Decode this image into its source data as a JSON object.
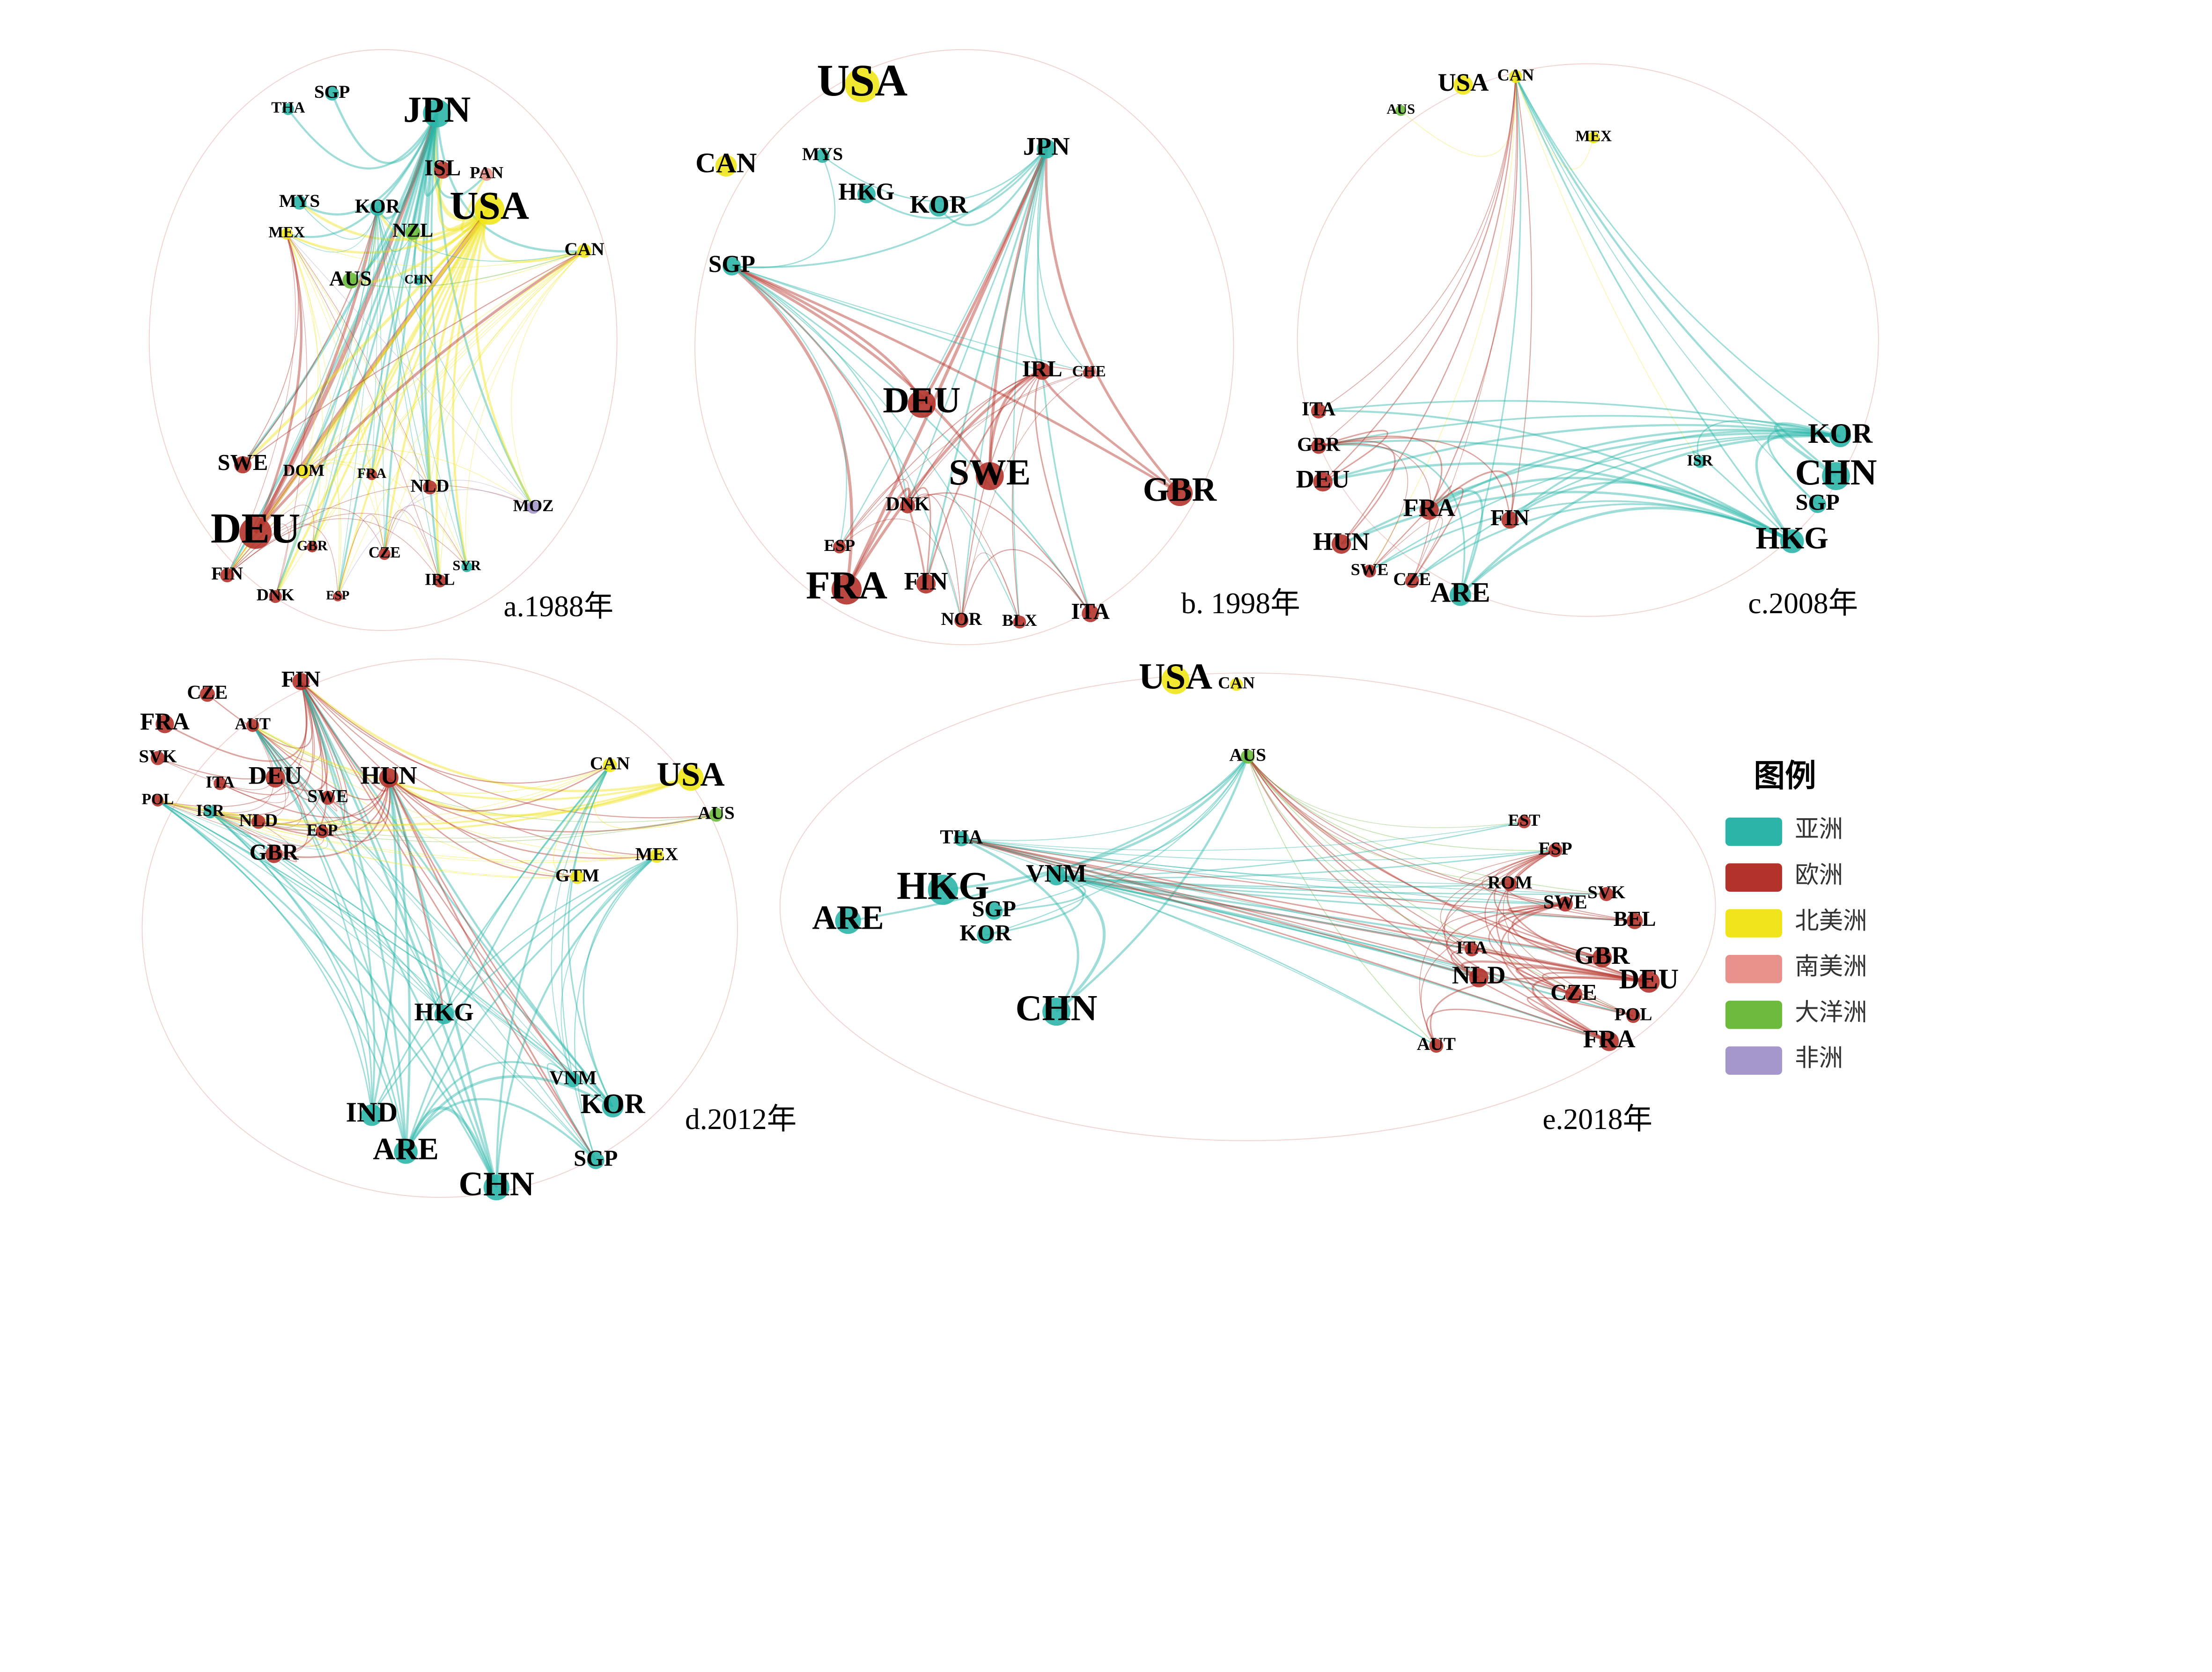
{
  "panels": [
    {
      "caption": "a.1988年",
      "nodes": [
        {
          "label": "JPN",
          "color": "#2bb5a8"
        },
        {
          "label": "SGP",
          "color": "#2bb5a8"
        },
        {
          "label": "THA",
          "color": "#2bb5a8"
        },
        {
          "label": "USA",
          "color": "#f0e51c"
        },
        {
          "label": "ISL",
          "color": "#b3332b"
        },
        {
          "label": "PAN",
          "color": "#e8918a"
        },
        {
          "label": "KOR",
          "color": "#2bb5a8"
        },
        {
          "label": "NZL",
          "color": "#6cbb3c"
        },
        {
          "label": "MYS",
          "color": "#2bb5a8"
        },
        {
          "label": "CAN",
          "color": "#f0e51c"
        },
        {
          "label": "AUS",
          "color": "#6cbb3c"
        },
        {
          "label": "CHN",
          "color": "#2bb5a8"
        },
        {
          "label": "MEX",
          "color": "#f0e51c"
        },
        {
          "label": "SWE",
          "color": "#b3332b"
        },
        {
          "label": "DEU",
          "color": "#b3332b"
        },
        {
          "label": "DOM",
          "color": "#f0e51c"
        },
        {
          "label": "FRA",
          "color": "#b3332b"
        },
        {
          "label": "NLD",
          "color": "#b3332b"
        },
        {
          "label": "FIN",
          "color": "#b3332b"
        },
        {
          "label": "DNK",
          "color": "#b3332b"
        },
        {
          "label": "GBR",
          "color": "#b3332b"
        },
        {
          "label": "CZE",
          "color": "#b3332b"
        },
        {
          "label": "IRL",
          "color": "#b3332b"
        },
        {
          "label": "SYR",
          "color": "#2bb5a8"
        },
        {
          "label": "MOZ",
          "color": "#a597cc"
        },
        {
          "label": "ESP",
          "color": "#b3332b"
        }
      ]
    },
    {
      "caption": "b. 1998年",
      "nodes": [
        {
          "label": "USA",
          "color": "#f0e51c"
        },
        {
          "label": "CAN",
          "color": "#f0e51c"
        },
        {
          "label": "JPN",
          "color": "#2bb5a8"
        },
        {
          "label": "HKG",
          "color": "#2bb5a8"
        },
        {
          "label": "KOR",
          "color": "#2bb5a8"
        },
        {
          "label": "SGP",
          "color": "#2bb5a8"
        },
        {
          "label": "MYS",
          "color": "#2bb5a8"
        },
        {
          "label": "DEU",
          "color": "#b3332b"
        },
        {
          "label": "IRL",
          "color": "#b3332b"
        },
        {
          "label": "SWE",
          "color": "#b3332b"
        },
        {
          "label": "GBR",
          "color": "#b3332b"
        },
        {
          "label": "DNK",
          "color": "#b3332b"
        },
        {
          "label": "FRA",
          "color": "#b3332b"
        },
        {
          "label": "FIN",
          "color": "#b3332b"
        },
        {
          "label": "NOR",
          "color": "#b3332b"
        },
        {
          "label": "BLX",
          "color": "#b3332b"
        },
        {
          "label": "ITA",
          "color": "#b3332b"
        },
        {
          "label": "CHE",
          "color": "#b3332b"
        },
        {
          "label": "ESP",
          "color": "#b3332b"
        }
      ]
    },
    {
      "caption": "c.2008年",
      "nodes": [
        {
          "label": "USA",
          "color": "#f0e51c"
        },
        {
          "label": "CAN",
          "color": "#f0e51c"
        },
        {
          "label": "AUS",
          "color": "#6cbb3c"
        },
        {
          "label": "MEX",
          "color": "#f0e51c"
        },
        {
          "label": "KOR",
          "color": "#2bb5a8"
        },
        {
          "label": "CHN",
          "color": "#2bb5a8"
        },
        {
          "label": "SGP",
          "color": "#2bb5a8"
        },
        {
          "label": "HKG",
          "color": "#2bb5a8"
        },
        {
          "label": "ISR",
          "color": "#2bb5a8"
        },
        {
          "label": "ITA",
          "color": "#b3332b"
        },
        {
          "label": "GBR",
          "color": "#b3332b"
        },
        {
          "label": "DEU",
          "color": "#b3332b"
        },
        {
          "label": "HUN",
          "color": "#b3332b"
        },
        {
          "label": "FRA",
          "color": "#b3332b"
        },
        {
          "label": "FIN",
          "color": "#b3332b"
        },
        {
          "label": "ARE",
          "color": "#2bb5a8"
        },
        {
          "label": "CZE",
          "color": "#b3332b"
        },
        {
          "label": "SWE",
          "color": "#b3332b"
        }
      ]
    },
    {
      "caption": "d.2012年",
      "nodes": [
        {
          "label": "FIN",
          "color": "#b3332b"
        },
        {
          "label": "CZE",
          "color": "#b3332b"
        },
        {
          "label": "FRA",
          "color": "#b3332b"
        },
        {
          "label": "AUT",
          "color": "#b3332b"
        },
        {
          "label": "SVK",
          "color": "#b3332b"
        },
        {
          "label": "DEU",
          "color": "#b3332b"
        },
        {
          "label": "HUN",
          "color": "#b3332b"
        },
        {
          "label": "SWE",
          "color": "#b3332b"
        },
        {
          "label": "ITA",
          "color": "#b3332b"
        },
        {
          "label": "ISR",
          "color": "#2bb5a8"
        },
        {
          "label": "NLD",
          "color": "#b3332b"
        },
        {
          "label": "GBR",
          "color": "#b3332b"
        },
        {
          "label": "POL",
          "color": "#b3332b"
        },
        {
          "label": "ESP",
          "color": "#b3332b"
        },
        {
          "label": "USA",
          "color": "#f0e51c"
        },
        {
          "label": "CAN",
          "color": "#f0e51c"
        },
        {
          "label": "AUS",
          "color": "#6cbb3c"
        },
        {
          "label": "GTM",
          "color": "#f0e51c"
        },
        {
          "label": "MEX",
          "color": "#f0e51c"
        },
        {
          "label": "HKG",
          "color": "#2bb5a8"
        },
        {
          "label": "IND",
          "color": "#2bb5a8"
        },
        {
          "label": "ARE",
          "color": "#2bb5a8"
        },
        {
          "label": "CHN",
          "color": "#2bb5a8"
        },
        {
          "label": "KOR",
          "color": "#2bb5a8"
        },
        {
          "label": "SGP",
          "color": "#2bb5a8"
        },
        {
          "label": "VNM",
          "color": "#2bb5a8"
        }
      ]
    },
    {
      "caption": "e.2018年",
      "nodes": [
        {
          "label": "USA",
          "color": "#f0e51c"
        },
        {
          "label": "CAN",
          "color": "#f0e51c"
        },
        {
          "label": "AUS",
          "color": "#6cbb3c"
        },
        {
          "label": "HKG",
          "color": "#2bb5a8"
        },
        {
          "label": "ARE",
          "color": "#2bb5a8"
        },
        {
          "label": "VNM",
          "color": "#2bb5a8"
        },
        {
          "label": "SGP",
          "color": "#2bb5a8"
        },
        {
          "label": "KOR",
          "color": "#2bb5a8"
        },
        {
          "label": "THA",
          "color": "#2bb5a8"
        },
        {
          "label": "CHN",
          "color": "#2bb5a8"
        },
        {
          "label": "EST",
          "color": "#b3332b"
        },
        {
          "label": "ESP",
          "color": "#b3332b"
        },
        {
          "label": "ROM",
          "color": "#b3332b"
        },
        {
          "label": "SVK",
          "color": "#b3332b"
        },
        {
          "label": "SWE",
          "color": "#b3332b"
        },
        {
          "label": "BEL",
          "color": "#b3332b"
        },
        {
          "label": "GBR",
          "color": "#b3332b"
        },
        {
          "label": "DEU",
          "color": "#b3332b"
        },
        {
          "label": "NLD",
          "color": "#b3332b"
        },
        {
          "label": "CZE",
          "color": "#b3332b"
        },
        {
          "label": "FRA",
          "color": "#b3332b"
        },
        {
          "label": "POL",
          "color": "#b3332b"
        },
        {
          "label": "ITA",
          "color": "#b3332b"
        },
        {
          "label": "AUT",
          "color": "#b3332b"
        }
      ]
    }
  ],
  "legend": {
    "title": "图例",
    "items": [
      {
        "label": "亚洲",
        "color": "#2bb5a8"
      },
      {
        "label": "欧洲",
        "color": "#b3332b"
      },
      {
        "label": "北美洲",
        "color": "#f0e51c"
      },
      {
        "label": "南美洲",
        "color": "#e8918a"
      },
      {
        "label": "大洋洲",
        "color": "#6cbb3c"
      },
      {
        "label": "非洲",
        "color": "#a597cc"
      }
    ]
  }
}
